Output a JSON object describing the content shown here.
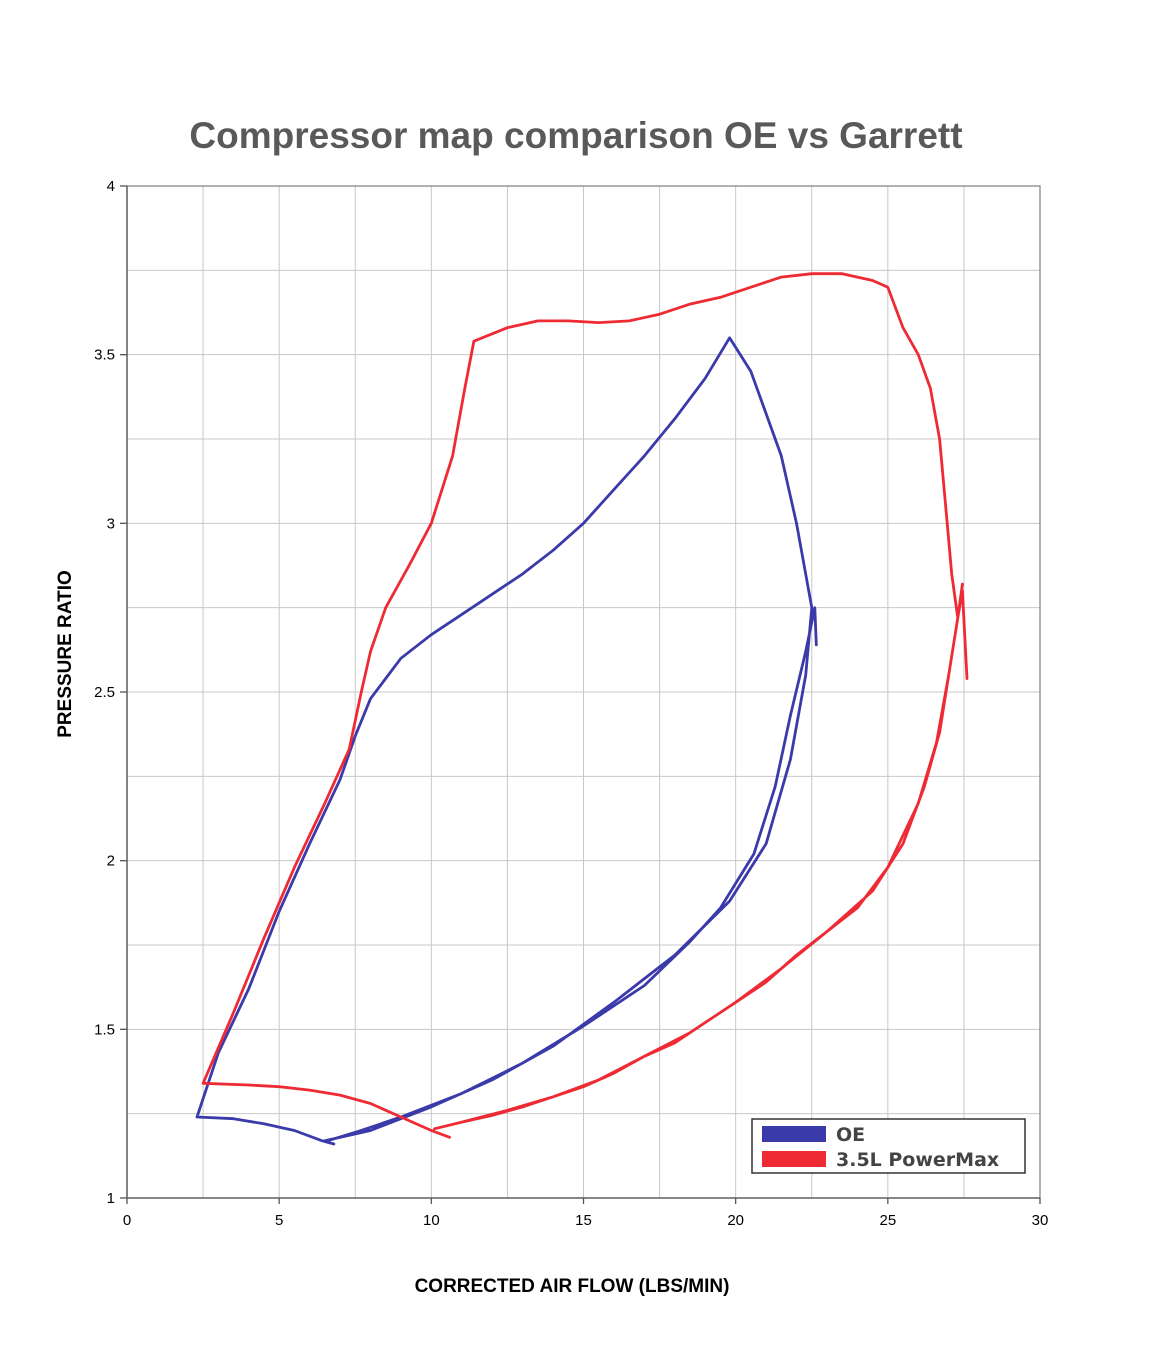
{
  "chart_data": {
    "type": "line",
    "title": "Compressor map comparison OE vs Garrett",
    "xlabel": "CORRECTED AIR FLOW (LBS/MIN)",
    "ylabel": "PRESSURE RATIO",
    "xlim": [
      0,
      30
    ],
    "ylim": [
      1,
      4
    ],
    "xticks": [
      "0",
      "5",
      "10",
      "15",
      "20",
      "25",
      "30"
    ],
    "yticks": [
      "1",
      "1.5",
      "2",
      "2.5",
      "3",
      "3.5",
      "4"
    ],
    "grid": true,
    "legend_position": "bottom-right",
    "series": [
      {
        "name": "OE",
        "color": "#3a3aaa",
        "points": [
          [
            6.8,
            1.16
          ],
          [
            6.4,
            1.17
          ],
          [
            5.5,
            1.2
          ],
          [
            4.5,
            1.22
          ],
          [
            3.5,
            1.235
          ],
          [
            2.3,
            1.24
          ],
          [
            3.0,
            1.43
          ],
          [
            4.0,
            1.62
          ],
          [
            5.0,
            1.85
          ],
          [
            6.0,
            2.05
          ],
          [
            7.0,
            2.24
          ],
          [
            7.5,
            2.37
          ],
          [
            8.0,
            2.48
          ],
          [
            9.0,
            2.6
          ],
          [
            10.0,
            2.67
          ],
          [
            11.0,
            2.73
          ],
          [
            12.0,
            2.79
          ],
          [
            13.0,
            2.85
          ],
          [
            14.0,
            2.92
          ],
          [
            15.0,
            3.0
          ],
          [
            16.0,
            3.1
          ],
          [
            17.0,
            3.2
          ],
          [
            18.0,
            3.31
          ],
          [
            19.0,
            3.43
          ],
          [
            19.8,
            3.55
          ],
          [
            20.5,
            3.45
          ],
          [
            21.5,
            3.2
          ],
          [
            22.0,
            3.0
          ],
          [
            22.5,
            2.75
          ],
          [
            22.3,
            2.55
          ],
          [
            21.8,
            2.3
          ],
          [
            21.0,
            2.05
          ],
          [
            19.8,
            1.88
          ],
          [
            18.0,
            1.72
          ],
          [
            16.0,
            1.58
          ],
          [
            14.0,
            1.45
          ],
          [
            12.0,
            1.35
          ],
          [
            10.0,
            1.27
          ],
          [
            8.0,
            1.2
          ],
          [
            6.5,
            1.17
          ],
          [
            6.6,
            1.17
          ],
          [
            7.7,
            1.2
          ],
          [
            9.0,
            1.24
          ],
          [
            11.0,
            1.31
          ],
          [
            13.0,
            1.4
          ],
          [
            15.0,
            1.51
          ],
          [
            17.0,
            1.63
          ],
          [
            18.5,
            1.76
          ],
          [
            19.5,
            1.86
          ],
          [
            20.6,
            2.02
          ],
          [
            21.3,
            2.22
          ],
          [
            21.8,
            2.43
          ],
          [
            22.3,
            2.62
          ],
          [
            22.6,
            2.75
          ],
          [
            22.65,
            2.64
          ]
        ]
      },
      {
        "name": "3.5L PowerMax",
        "color": "#ee2b34",
        "points": [
          [
            10.6,
            1.18
          ],
          [
            10.0,
            1.2
          ],
          [
            9.0,
            1.24
          ],
          [
            8.0,
            1.28
          ],
          [
            7.0,
            1.305
          ],
          [
            6.0,
            1.32
          ],
          [
            5.0,
            1.33
          ],
          [
            4.0,
            1.335
          ],
          [
            2.5,
            1.34
          ],
          [
            3.5,
            1.55
          ],
          [
            4.5,
            1.77
          ],
          [
            5.5,
            1.98
          ],
          [
            6.5,
            2.17
          ],
          [
            7.3,
            2.33
          ],
          [
            7.7,
            2.5
          ],
          [
            8.0,
            2.62
          ],
          [
            8.5,
            2.75
          ],
          [
            9.3,
            2.88
          ],
          [
            10.0,
            3.0
          ],
          [
            10.7,
            3.2
          ],
          [
            11.1,
            3.4
          ],
          [
            11.4,
            3.54
          ],
          [
            12.5,
            3.58
          ],
          [
            13.5,
            3.6
          ],
          [
            14.5,
            3.6
          ],
          [
            15.5,
            3.595
          ],
          [
            16.5,
            3.6
          ],
          [
            17.5,
            3.62
          ],
          [
            18.5,
            3.65
          ],
          [
            19.5,
            3.67
          ],
          [
            20.5,
            3.7
          ],
          [
            21.5,
            3.73
          ],
          [
            22.5,
            3.74
          ],
          [
            23.5,
            3.74
          ],
          [
            24.5,
            3.72
          ],
          [
            25.0,
            3.7
          ],
          [
            25.5,
            3.58
          ],
          [
            26.0,
            3.5
          ],
          [
            26.4,
            3.4
          ],
          [
            26.7,
            3.25
          ],
          [
            26.9,
            3.05
          ],
          [
            27.1,
            2.85
          ],
          [
            27.3,
            2.72
          ],
          [
            27.45,
            2.82
          ],
          [
            27.3,
            2.72
          ],
          [
            27.0,
            2.55
          ],
          [
            26.6,
            2.35
          ],
          [
            26.0,
            2.17
          ],
          [
            25.0,
            1.98
          ],
          [
            24.0,
            1.86
          ],
          [
            23.0,
            1.79
          ],
          [
            22.0,
            1.72
          ],
          [
            21.0,
            1.64
          ],
          [
            20.0,
            1.58
          ],
          [
            19.0,
            1.52
          ],
          [
            18.0,
            1.46
          ],
          [
            17.0,
            1.42
          ],
          [
            16.0,
            1.37
          ],
          [
            15.0,
            1.33
          ],
          [
            14.0,
            1.3
          ],
          [
            13.0,
            1.27
          ],
          [
            12.0,
            1.245
          ],
          [
            11.0,
            1.225
          ],
          [
            10.1,
            1.205
          ],
          [
            11.0,
            1.225
          ],
          [
            12.5,
            1.26
          ],
          [
            14.0,
            1.3
          ],
          [
            15.5,
            1.35
          ],
          [
            17.0,
            1.42
          ],
          [
            18.5,
            1.49
          ],
          [
            20.0,
            1.58
          ],
          [
            21.5,
            1.68
          ],
          [
            23.0,
            1.79
          ],
          [
            24.5,
            1.91
          ],
          [
            25.5,
            2.05
          ],
          [
            26.2,
            2.22
          ],
          [
            26.7,
            2.38
          ],
          [
            27.0,
            2.55
          ],
          [
            27.3,
            2.72
          ],
          [
            27.45,
            2.8
          ],
          [
            27.6,
            2.54
          ]
        ]
      }
    ]
  }
}
